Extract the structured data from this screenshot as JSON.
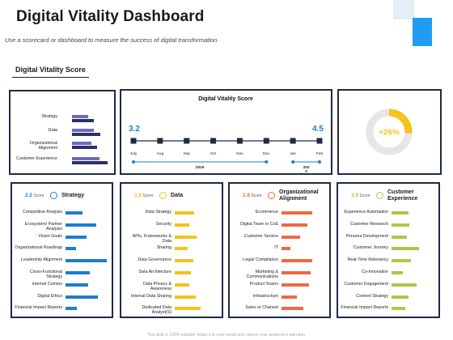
{
  "title": "Digital Vitality Dashboard",
  "subtitle": "Use a scorecard or dashboard to measure the success of digital transformation.",
  "section_label": "Digital Vitality Score",
  "footer": "This slide is 100% editable. Adapt it to your needs and capture your audience's attention.",
  "colors": {
    "navy": "#2b2f6b",
    "lavender": "#6b6bbf",
    "blue": "#1f7ccf",
    "yellow": "#f6c21c",
    "orange": "#ec6a3e",
    "green": "#a9c94a",
    "accent": "#1e9df2"
  },
  "score_bars": {
    "labels": [
      "Strategy",
      "Data",
      "Organizational Alignment",
      "Customer Experience"
    ],
    "series": [
      {
        "values": [
          0.45,
          0.62,
          0.55,
          0.78
        ]
      },
      {
        "values": [
          0.62,
          0.8,
          0.7,
          1.0
        ]
      }
    ]
  },
  "timeline": {
    "title": "Digital Vitality Score",
    "start_value": "3.2",
    "end_value": "4.5",
    "months": [
      "July",
      "Aug",
      "Sep",
      "Oct",
      "Nov",
      "Dec",
      "Jan",
      "Feb"
    ],
    "year_a": "2019",
    "year_b": "202",
    "year_b2": "0"
  },
  "donut": {
    "label": "+26%",
    "value": 0.26
  },
  "strategy": {
    "score": "2.2",
    "score_word": "Score",
    "title": "Strategy",
    "items": [
      {
        "label": "Competitive Analysis",
        "value": 0.42
      },
      {
        "label": "Ecosystem/ Partner Analysis",
        "value": 0.75
      },
      {
        "label": "Vision Goals",
        "value": 0.5
      },
      {
        "label": "Organizational Roadmap",
        "value": 0.25
      },
      {
        "label": "Leadership Alignment",
        "value": 1.0
      },
      {
        "label": "Cross-Functional Strategy",
        "value": 0.58
      },
      {
        "label": "Internal Comms",
        "value": 0.55
      },
      {
        "label": "Digital Ethics",
        "value": 0.78
      },
      {
        "label": "Financial Impact Reports",
        "value": 0.28
      }
    ]
  },
  "data": {
    "score": "3.8",
    "score_word": "Score",
    "title": "Data",
    "items": [
      {
        "label": "Data Strategy",
        "value": 0.75
      },
      {
        "label": "Security",
        "value": 0.55
      },
      {
        "label": "APIs, Frameworks & Data",
        "value": 0.85
      },
      {
        "label": "Sharing",
        "value": 0.5
      },
      {
        "label": "Data Governance",
        "value": 0.72
      },
      {
        "label": "Data Architecture",
        "value": 0.62
      },
      {
        "label": "Data Privacy & Awareness",
        "value": 0.55
      },
      {
        "label": "Internal Data Sharing",
        "value": 0.8
      },
      {
        "label": "Dedicated Data Analyst(S)",
        "value": 1.0
      }
    ]
  },
  "org": {
    "score": "2.8",
    "score_word": "Score",
    "title": "Organizational Alignment",
    "items": [
      {
        "label": "Ecommerce",
        "value": 1.0
      },
      {
        "label": "Digital Team or CoE",
        "value": 0.85
      },
      {
        "label": "Customer Service",
        "value": 0.6
      },
      {
        "label": "IT",
        "value": 0.28
      },
      {
        "label": "Legal/ Compliance",
        "value": 1.0
      },
      {
        "label": "Marketing & Communications",
        "value": 0.95
      },
      {
        "label": "Product Teams",
        "value": 0.9
      },
      {
        "label": "Infrastructure",
        "value": 0.5
      },
      {
        "label": "Sales or Channel",
        "value": 0.7
      }
    ]
  },
  "cx": {
    "score": "3.9",
    "score_word": "Score",
    "title": "Customer Experience",
    "items": [
      {
        "label": "Experience Automation",
        "value": 0.62
      },
      {
        "label": "Customer Research",
        "value": 0.65
      },
      {
        "label": "Persona Development",
        "value": 0.55
      },
      {
        "label": "Customer Journey",
        "value": 1.0
      },
      {
        "label": "Real-Time Relevancy",
        "value": 0.72
      },
      {
        "label": "Co-Innovation",
        "value": 0.42
      },
      {
        "label": "Customer Engagement",
        "value": 0.9
      },
      {
        "label": "Content Strategy",
        "value": 0.62
      },
      {
        "label": "Financial Impact Reports",
        "value": 0.5
      }
    ]
  }
}
